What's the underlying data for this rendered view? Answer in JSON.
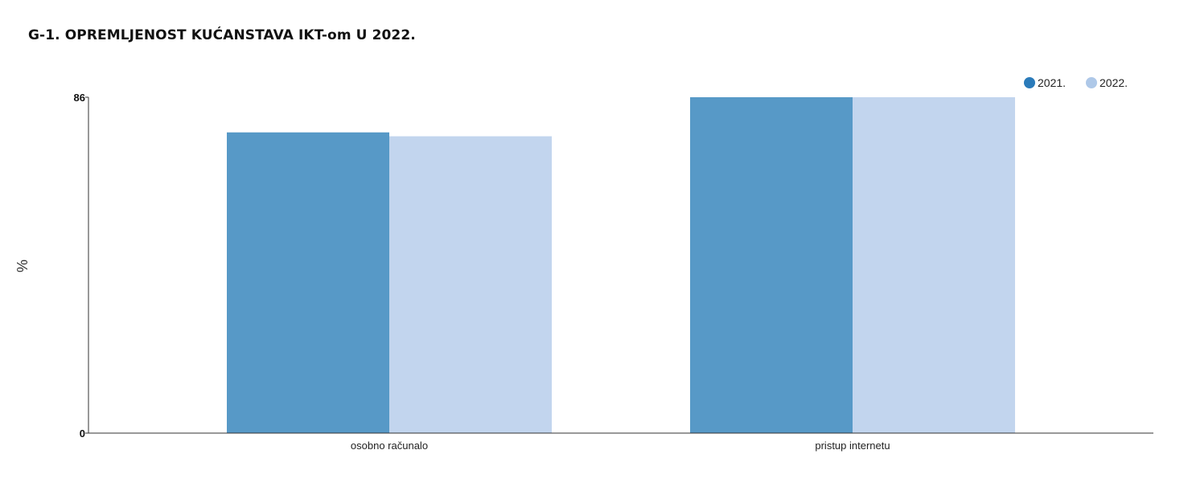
{
  "chart_data": {
    "type": "bar",
    "title": "G-1. OPREMLJENOST KUĆANSTAVA IKT-om U 2022.",
    "ylabel": "%",
    "xlabel": "",
    "categories": [
      "osobno računalo",
      "pristup internetu"
    ],
    "series": [
      {
        "name": "2021.",
        "values": [
          77,
          86
        ],
        "color": "#5799c7",
        "legend_color": "#2b7bba"
      },
      {
        "name": "2022.",
        "values": [
          76,
          86
        ],
        "color": "#c2d5ee",
        "legend_color": "#aec8e8"
      }
    ],
    "ylim": [
      0,
      86
    ],
    "yticks": [
      "0",
      "86"
    ],
    "legend_position": "top-right",
    "grid": false
  }
}
